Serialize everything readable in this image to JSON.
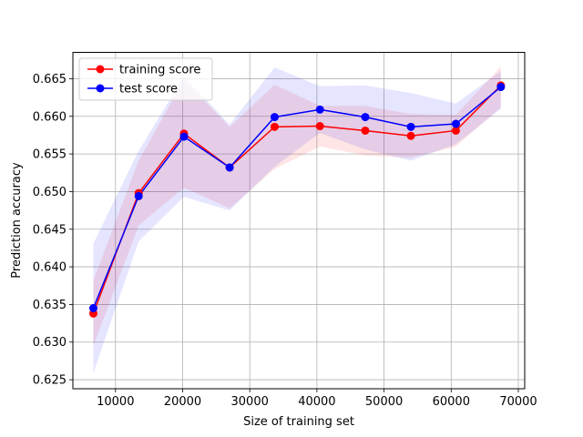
{
  "chart_data": {
    "type": "line",
    "title": "",
    "xlabel": "Size of training set",
    "ylabel": "Prediction accuracy",
    "xlim": [
      3650,
      70950
    ],
    "ylim": [
      0.6238,
      0.6685
    ],
    "grid": true,
    "legend_position": "top-left",
    "x_ticks": [
      {
        "value": 10000,
        "label": "10000"
      },
      {
        "value": 20000,
        "label": "20000"
      },
      {
        "value": 30000,
        "label": "30000"
      },
      {
        "value": 40000,
        "label": "40000"
      },
      {
        "value": 50000,
        "label": "50000"
      },
      {
        "value": 60000,
        "label": "60000"
      },
      {
        "value": 70000,
        "label": "70000"
      }
    ],
    "y_ticks": [
      {
        "value": 0.625,
        "label": "0.625"
      },
      {
        "value": 0.63,
        "label": "0.630"
      },
      {
        "value": 0.635,
        "label": "0.635"
      },
      {
        "value": 0.64,
        "label": "0.640"
      },
      {
        "value": 0.645,
        "label": "0.645"
      },
      {
        "value": 0.65,
        "label": "0.650"
      },
      {
        "value": 0.655,
        "label": "0.655"
      },
      {
        "value": 0.66,
        "label": "0.660"
      },
      {
        "value": 0.665,
        "label": "0.665"
      }
    ],
    "x": [
      6700,
      13450,
      20200,
      27000,
      33700,
      40450,
      47200,
      54000,
      60700,
      67400
    ],
    "series": [
      {
        "name": "training score",
        "color": "#ff0000",
        "band_color": "#ff0000",
        "values": [
          0.6338,
          0.6498,
          0.6577,
          0.6532,
          0.6586,
          0.6587,
          0.6581,
          0.6574,
          0.6581,
          0.6641
        ],
        "lower": [
          0.6295,
          0.6455,
          0.6505,
          0.6478,
          0.653,
          0.656,
          0.6548,
          0.6545,
          0.656,
          0.6612
        ],
        "upper": [
          0.6382,
          0.6541,
          0.6649,
          0.6586,
          0.6642,
          0.6614,
          0.6614,
          0.6603,
          0.6602,
          0.6666
        ]
      },
      {
        "name": "test score",
        "color": "#0000ff",
        "band_color": "#0000ff",
        "values": [
          0.6345,
          0.6494,
          0.6573,
          0.6532,
          0.6599,
          0.6609,
          0.6599,
          0.6586,
          0.659,
          0.6639
        ],
        "lower": [
          0.6259,
          0.6434,
          0.6493,
          0.6475,
          0.6533,
          0.6578,
          0.6556,
          0.6541,
          0.6563,
          0.661
        ],
        "upper": [
          0.6431,
          0.6554,
          0.6653,
          0.6589,
          0.6665,
          0.664,
          0.6641,
          0.6631,
          0.6617,
          0.666
        ]
      }
    ]
  }
}
